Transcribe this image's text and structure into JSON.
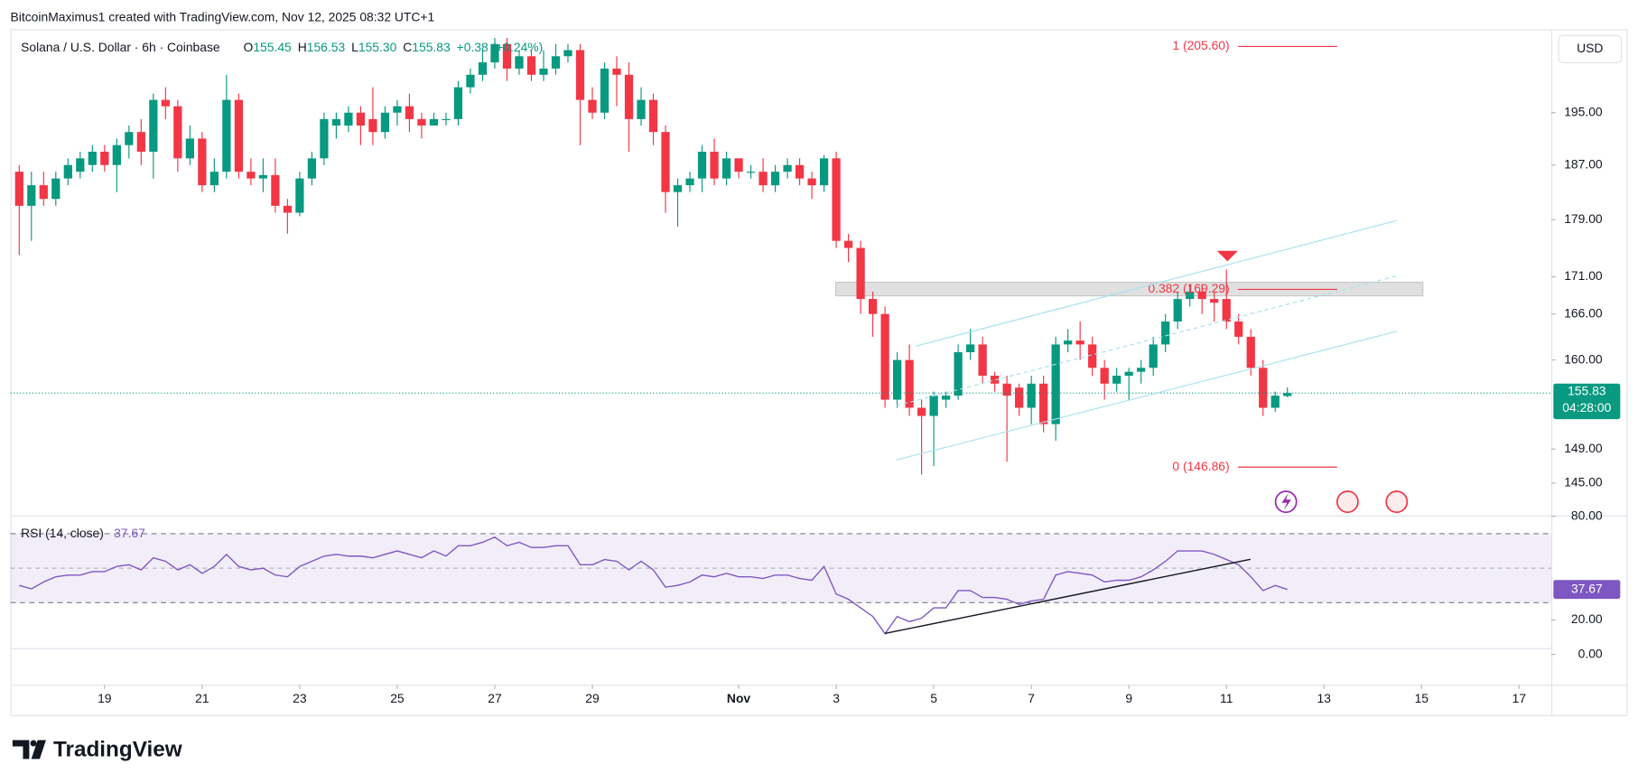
{
  "header": {
    "attribution": "BitcoinMaximus1 created with TradingView.com, Nov 12, 2025 08:32 UTC+1",
    "symbol": "Solana / U.S. Dollar · 6h · Coinbase",
    "legend": [
      {
        "label": "O",
        "value": "155.45"
      },
      {
        "label": "H",
        "value": "156.53"
      },
      {
        "label": "L",
        "value": "155.30"
      },
      {
        "label": "C",
        "value": "155.83"
      }
    ],
    "change": "+0.38 (+0.24%)"
  },
  "currency": "USD",
  "countdown": "04:28:00",
  "brand": "TradingView",
  "chart_data": [
    {
      "type": "candlestick",
      "x": [
        17.25,
        17.5,
        17.75,
        18,
        18.25,
        18.5,
        18.75,
        19,
        19.25,
        19.5,
        19.75,
        20,
        20.25,
        20.5,
        20.75,
        21,
        21.25,
        21.5,
        21.75,
        22,
        22.25,
        22.5,
        22.75,
        23,
        23.25,
        23.5,
        23.75,
        24,
        24.25,
        24.5,
        24.75,
        25,
        25.25,
        25.5,
        25.75,
        26,
        26.25,
        26.5,
        26.75,
        27,
        27.25,
        27.5,
        27.75,
        28,
        28.25,
        28.5,
        28.75,
        29,
        29.25,
        29.5,
        29.75,
        30,
        30.25,
        30.5,
        30.75,
        31,
        31.25,
        31.5,
        31.75,
        32,
        32.25,
        32.5,
        32.75,
        33,
        33.25,
        33.5,
        33.75,
        34,
        34.25,
        34.5,
        34.75,
        35,
        35.25,
        35.5,
        35.75,
        36,
        36.25,
        36.5,
        36.75,
        37,
        37.25,
        37.5,
        37.75,
        38,
        38.25,
        38.5,
        38.75,
        39,
        39.25,
        39.5,
        39.75,
        40,
        40.25,
        40.5,
        40.75,
        41,
        41.25,
        41.5,
        41.75,
        42,
        42.25,
        42.5,
        42.75,
        43,
        43.25
      ],
      "open": [
        186,
        181,
        184,
        182,
        185,
        186,
        187,
        189,
        187,
        190,
        192,
        189,
        197,
        196,
        188,
        191,
        184,
        186,
        197,
        186,
        185,
        185.5,
        181,
        180,
        185,
        188,
        193,
        193,
        195,
        194,
        192,
        195,
        196,
        194,
        193,
        194,
        194,
        199,
        201,
        203,
        206,
        202,
        204,
        201,
        202,
        204,
        205,
        197,
        195,
        202,
        201,
        194,
        197,
        192,
        183,
        184,
        185,
        189,
        185,
        188,
        186,
        186,
        184,
        186,
        187,
        185,
        184,
        188,
        176,
        175,
        168,
        166,
        155,
        160,
        154,
        153,
        155,
        155.5,
        161,
        162,
        158,
        157,
        156.5,
        154,
        157,
        152,
        162,
        162.5,
        162,
        159,
        157,
        158,
        158.5,
        159,
        162,
        165,
        168,
        169,
        168,
        168,
        165,
        163,
        159,
        154,
        155.45
      ],
      "high": [
        187,
        186,
        186,
        186,
        188,
        189,
        190,
        190,
        191,
        193,
        194,
        198,
        199,
        197,
        193,
        192,
        188,
        201,
        198,
        188,
        188,
        188,
        182,
        186,
        189,
        195,
        195,
        196,
        196,
        199,
        196,
        197,
        198,
        195,
        195,
        195,
        200,
        202,
        205,
        207,
        207,
        205,
        205,
        205,
        206,
        206,
        206,
        199,
        203,
        204,
        203,
        199,
        198,
        193,
        185,
        186,
        190,
        191,
        189,
        188,
        187,
        188,
        187,
        188,
        188,
        186,
        188.5,
        189,
        177,
        176,
        169,
        167,
        161,
        162,
        155,
        156,
        156,
        162,
        164,
        163,
        158.5,
        158,
        157,
        158,
        158,
        163,
        164,
        165,
        163,
        160,
        159,
        159,
        160,
        163,
        166,
        169,
        170,
        170,
        169,
        172,
        166,
        164,
        160,
        156,
        156.53
      ],
      "low": [
        174,
        176,
        181,
        181,
        184,
        185,
        186,
        186,
        183,
        188,
        187,
        185,
        194,
        186,
        187,
        183,
        183,
        185,
        185,
        184,
        183,
        180,
        177,
        179.5,
        184,
        187,
        191,
        192,
        190,
        190,
        191,
        193,
        192,
        191,
        193,
        193,
        193,
        198,
        200,
        202,
        200,
        201,
        200,
        200,
        201,
        203,
        190,
        194,
        194,
        196,
        189,
        193,
        190,
        180,
        178,
        183,
        183,
        184,
        184,
        185,
        185,
        183,
        183,
        185,
        184,
        182,
        183,
        175,
        173,
        166,
        163,
        154,
        154,
        153,
        146,
        147,
        154,
        155,
        160,
        157,
        156,
        147.5,
        153,
        152,
        151,
        150,
        161,
        160,
        158,
        155,
        156,
        155,
        157,
        158,
        161,
        164,
        167,
        166,
        165,
        164,
        162,
        158,
        153,
        153.5,
        155.3
      ],
      "close": [
        181,
        184,
        182,
        185,
        187,
        188,
        189,
        187,
        190,
        192,
        189,
        197,
        196,
        188,
        191,
        184,
        186,
        197,
        186,
        185,
        185.5,
        181,
        180,
        185,
        188,
        194,
        194,
        195,
        193,
        192,
        195,
        196,
        194,
        193,
        194,
        194,
        199,
        201,
        203,
        206,
        202,
        204,
        201,
        202,
        204,
        205,
        197,
        195,
        202,
        201,
        194,
        197,
        192,
        183,
        184,
        185,
        189,
        185,
        188,
        186,
        186,
        184,
        186,
        187,
        185,
        184,
        188,
        176,
        175,
        168,
        166,
        155,
        160,
        154,
        153,
        155.5,
        155.5,
        161,
        162,
        158,
        157,
        155.5,
        154,
        157,
        152,
        162,
        162.5,
        162,
        159,
        157,
        158,
        158.5,
        159,
        162,
        165,
        168,
        169,
        168,
        167.5,
        165,
        163,
        159,
        154,
        155.5,
        155.83
      ],
      "up_color": "#089981",
      "down_color": "#f23645",
      "xlim": [
        17.07,
        48.66
      ],
      "xticks": [
        19,
        21,
        23,
        25,
        27,
        29,
        {
          "value": 32,
          "label": "Nov"
        },
        {
          "value": 34,
          "label": "3"
        },
        {
          "value": 36,
          "label": "5"
        },
        {
          "value": 38,
          "label": "7"
        },
        {
          "value": 40,
          "label": "9"
        },
        {
          "value": 42,
          "label": "11"
        },
        {
          "value": 44,
          "label": "13"
        },
        {
          "value": 46,
          "label": "15"
        },
        {
          "value": 48,
          "label": "17"
        }
      ],
      "ylim": [
        141.3,
        208.1
      ],
      "log_scale": true,
      "yticks": [
        {
          "value": 195,
          "label": "195.00"
        },
        {
          "value": 187,
          "label": "187.00"
        },
        {
          "value": 179,
          "label": "179.00"
        },
        {
          "value": 171,
          "label": "171.00"
        },
        {
          "value": 166,
          "label": "166.00"
        },
        {
          "value": 160,
          "label": "160.00"
        },
        {
          "value": 149,
          "label": "149.00"
        },
        {
          "value": 145,
          "label": "145.00"
        }
      ],
      "fib": [
        {
          "value": 205.6,
          "label": "1 (205.60)"
        },
        {
          "value": 169.29,
          "label": "0.382 (169.29)"
        },
        {
          "value": 146.86,
          "label": "0 (146.86)"
        }
      ],
      "fib_color": "#f23645"
    },
    {
      "type": "line",
      "name": "RSI (14, close)",
      "color": "#7e57c2",
      "x": [
        17.25,
        17.5,
        17.75,
        18,
        18.25,
        18.5,
        18.75,
        19,
        19.25,
        19.5,
        19.75,
        20,
        20.25,
        20.5,
        20.75,
        21,
        21.25,
        21.5,
        21.75,
        22,
        22.25,
        22.5,
        22.75,
        23,
        23.25,
        23.5,
        23.75,
        24,
        24.25,
        24.5,
        24.75,
        25,
        25.25,
        25.5,
        25.75,
        26,
        26.25,
        26.5,
        26.75,
        27,
        27.25,
        27.5,
        27.75,
        28,
        28.25,
        28.5,
        28.75,
        29,
        29.25,
        29.5,
        29.75,
        30,
        30.25,
        30.5,
        30.75,
        31,
        31.25,
        31.5,
        31.75,
        32,
        32.25,
        32.5,
        32.75,
        33,
        33.25,
        33.5,
        33.75,
        34,
        34.25,
        34.5,
        34.75,
        35,
        35.25,
        35.5,
        35.75,
        36,
        36.25,
        36.5,
        36.75,
        37,
        37.25,
        37.5,
        37.75,
        38,
        38.25,
        38.5,
        38.75,
        39,
        39.25,
        39.5,
        39.75,
        40,
        40.25,
        40.5,
        40.75,
        41,
        41.25,
        41.5,
        41.75,
        42,
        42.25,
        42.5,
        42.75,
        43,
        43.25
      ],
      "values": [
        40,
        38,
        42,
        45,
        46,
        46,
        48,
        48,
        51,
        52,
        49,
        56,
        54,
        49,
        52,
        47,
        51,
        58,
        51,
        49,
        50,
        46,
        45,
        51,
        54,
        57,
        58,
        57,
        57,
        56,
        58,
        60,
        58,
        56,
        60,
        57,
        63,
        63,
        65,
        68,
        63,
        65,
        62,
        62,
        63,
        63,
        52,
        52,
        55,
        54,
        49,
        54,
        49,
        39,
        40,
        42,
        46,
        45,
        47,
        45,
        45,
        44,
        46,
        46,
        44,
        43,
        51,
        35,
        32,
        27,
        22,
        12,
        22,
        19,
        21,
        27,
        27,
        37,
        37,
        33,
        33,
        32,
        29,
        31,
        32,
        46,
        48,
        47,
        46,
        42,
        43,
        43,
        45,
        49,
        54,
        60,
        60,
        60,
        58,
        55,
        52,
        45,
        37,
        40,
        37.67
      ],
      "ylim": [
        0,
        80
      ],
      "yticks": [
        {
          "value": 80,
          "label": "80.00"
        },
        {
          "value": 20,
          "label": "20.00"
        },
        {
          "value": 0,
          "label": "0.00"
        }
      ],
      "band": [
        30,
        70
      ],
      "midline": 50
    }
  ]
}
